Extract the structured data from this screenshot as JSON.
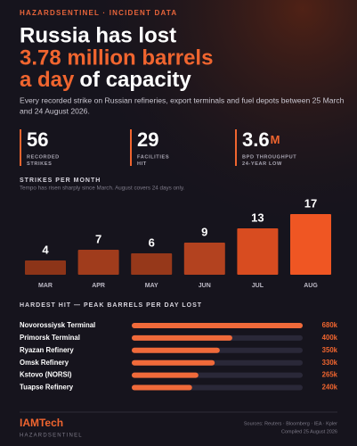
{
  "header": {
    "kicker": "HAZARDSENTINEL · INCIDENT DATA",
    "title": [
      "Russia has lost",
      "3.78 million barrels",
      "a day",
      "of capacity"
    ],
    "subtitle": [
      "Every recorded strike on Russian refineries, export terminals and fuel depots between 25 March",
      "and 24 August 2026."
    ]
  },
  "stats": [
    {
      "value": "56",
      "label": [
        "RECORDED",
        "STRIKES"
      ]
    },
    {
      "value": "29",
      "label": [
        "FACILITIES",
        "HIT"
      ]
    },
    {
      "value": "3.6",
      "unit": "M",
      "label": [
        "BPD THROUGHPUT",
        "24-YEAR LOW"
      ]
    }
  ],
  "chart_data": [
    {
      "type": "bar",
      "title": "STRIKES PER MONTH",
      "subtitle": "Tempo has risen sharply since March. August covers 24 days only.",
      "categories": [
        "MAR",
        "APR",
        "MAY",
        "JUN",
        "JUL",
        "AUG"
      ],
      "values": [
        4,
        7,
        6,
        9,
        13,
        17
      ],
      "colors": [
        "#8c3418",
        "#a03c1c",
        "#96381a",
        "#b3421f",
        "#d84c20",
        "#ef5623"
      ]
    },
    {
      "type": "hbar",
      "title": "HARDEST HIT — PEAK BARRELS PER DAY LOST",
      "categories": [
        "Novorossiysk Terminal",
        "Primorsk Terminal",
        "Ryazan Refinery",
        "Omsk Refinery",
        "Kstovo (NORSI)",
        "Tuapse Refinery"
      ],
      "values": [
        680000,
        400000,
        350000,
        330000,
        265000,
        240000
      ],
      "value_labels": [
        "680k",
        "400k",
        "350k",
        "330k",
        "265k",
        "240k"
      ],
      "color": "#f06a3a"
    }
  ],
  "footer": {
    "brand": "IAMTech",
    "brand_sub": "HAZARDSENTINEL",
    "sources": "Sources: Reuters · Bloomberg · IEA · Kpler",
    "compiled": "Compiled 25 August 2026"
  }
}
